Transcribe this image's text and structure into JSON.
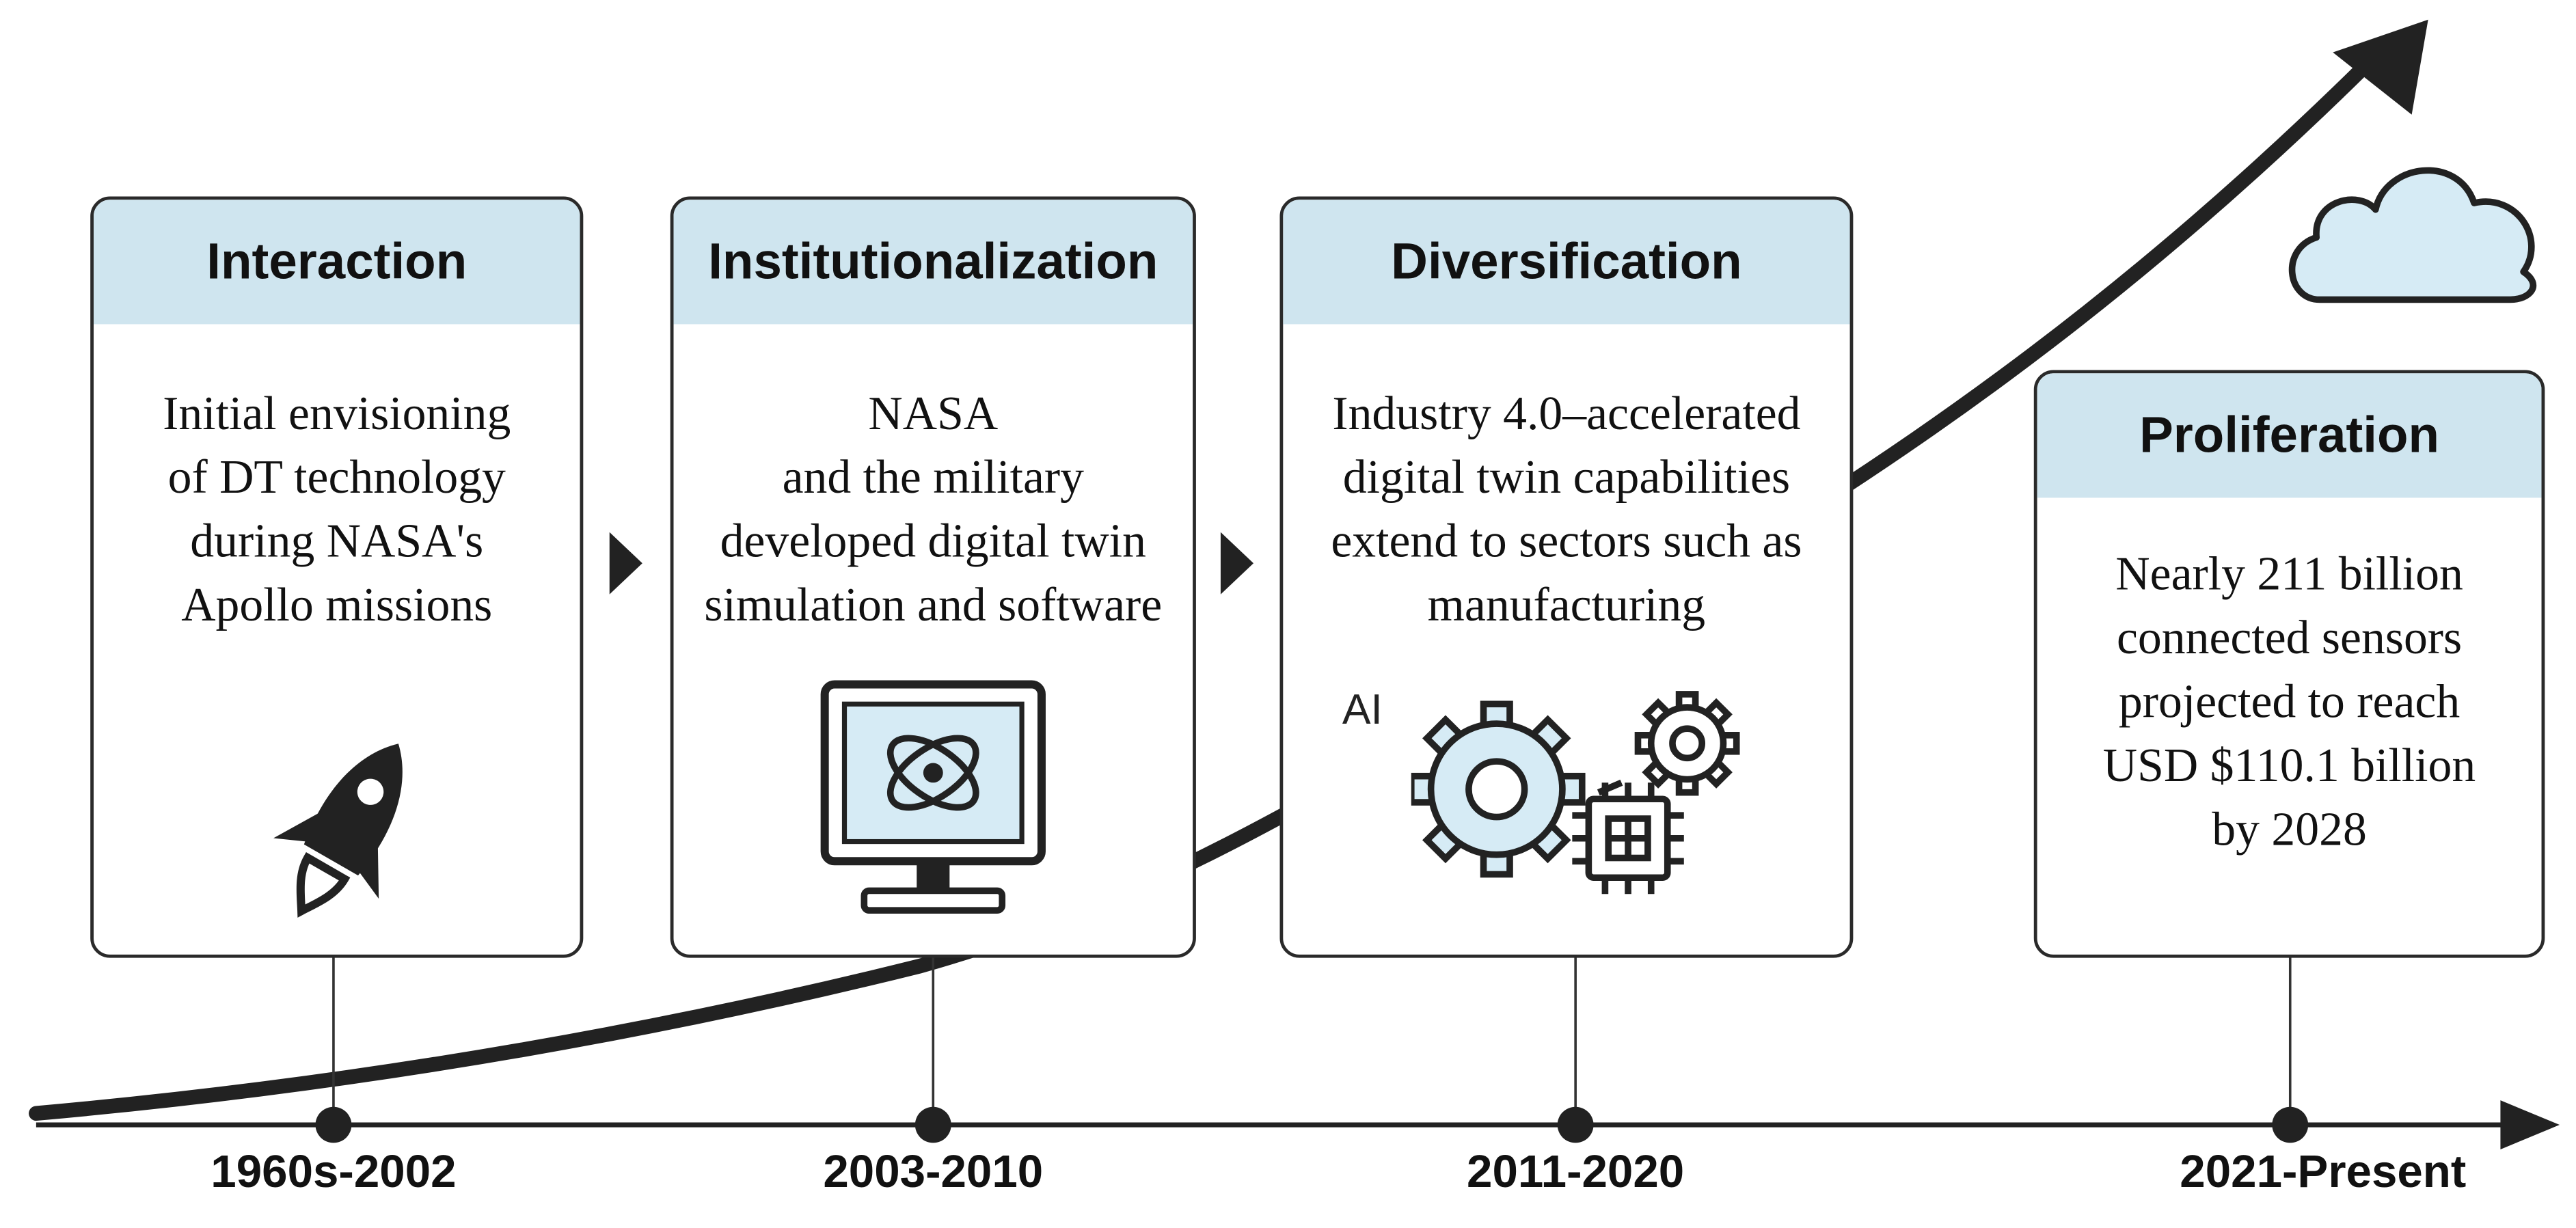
{
  "stages": [
    {
      "title": "Interaction",
      "lines": [
        "Initial envisioning",
        "of DT technology",
        "during NASA's",
        "Apollo missions"
      ],
      "period": "1960s-2002",
      "icon": "rocket-icon"
    },
    {
      "title": "Institutionalization",
      "lines": [
        "NASA",
        "and the military",
        "developed digital twin",
        "simulation and software"
      ],
      "period": "2003-2010",
      "icon": "monitor-icon"
    },
    {
      "title": "Diversification",
      "lines": [
        "Industry 4.0–accelerated",
        "digital twin capabilities",
        "extend to sectors such as",
        "manufacturing"
      ],
      "period": "2011-2020",
      "icon": "gears-chip-icon",
      "icon_text": "AI"
    },
    {
      "title": "Proliferation",
      "lines": [
        "Nearly 211 billion",
        "connected sensors",
        "projected to reach",
        "USD $110.1 billion",
        "by 2028"
      ],
      "period": "2021-Present",
      "icon": "cloud-icon"
    }
  ],
  "colors": {
    "header_fill": "#cfe5ef",
    "icon_fill": "#d6ebf5",
    "stroke": "#222222"
  }
}
